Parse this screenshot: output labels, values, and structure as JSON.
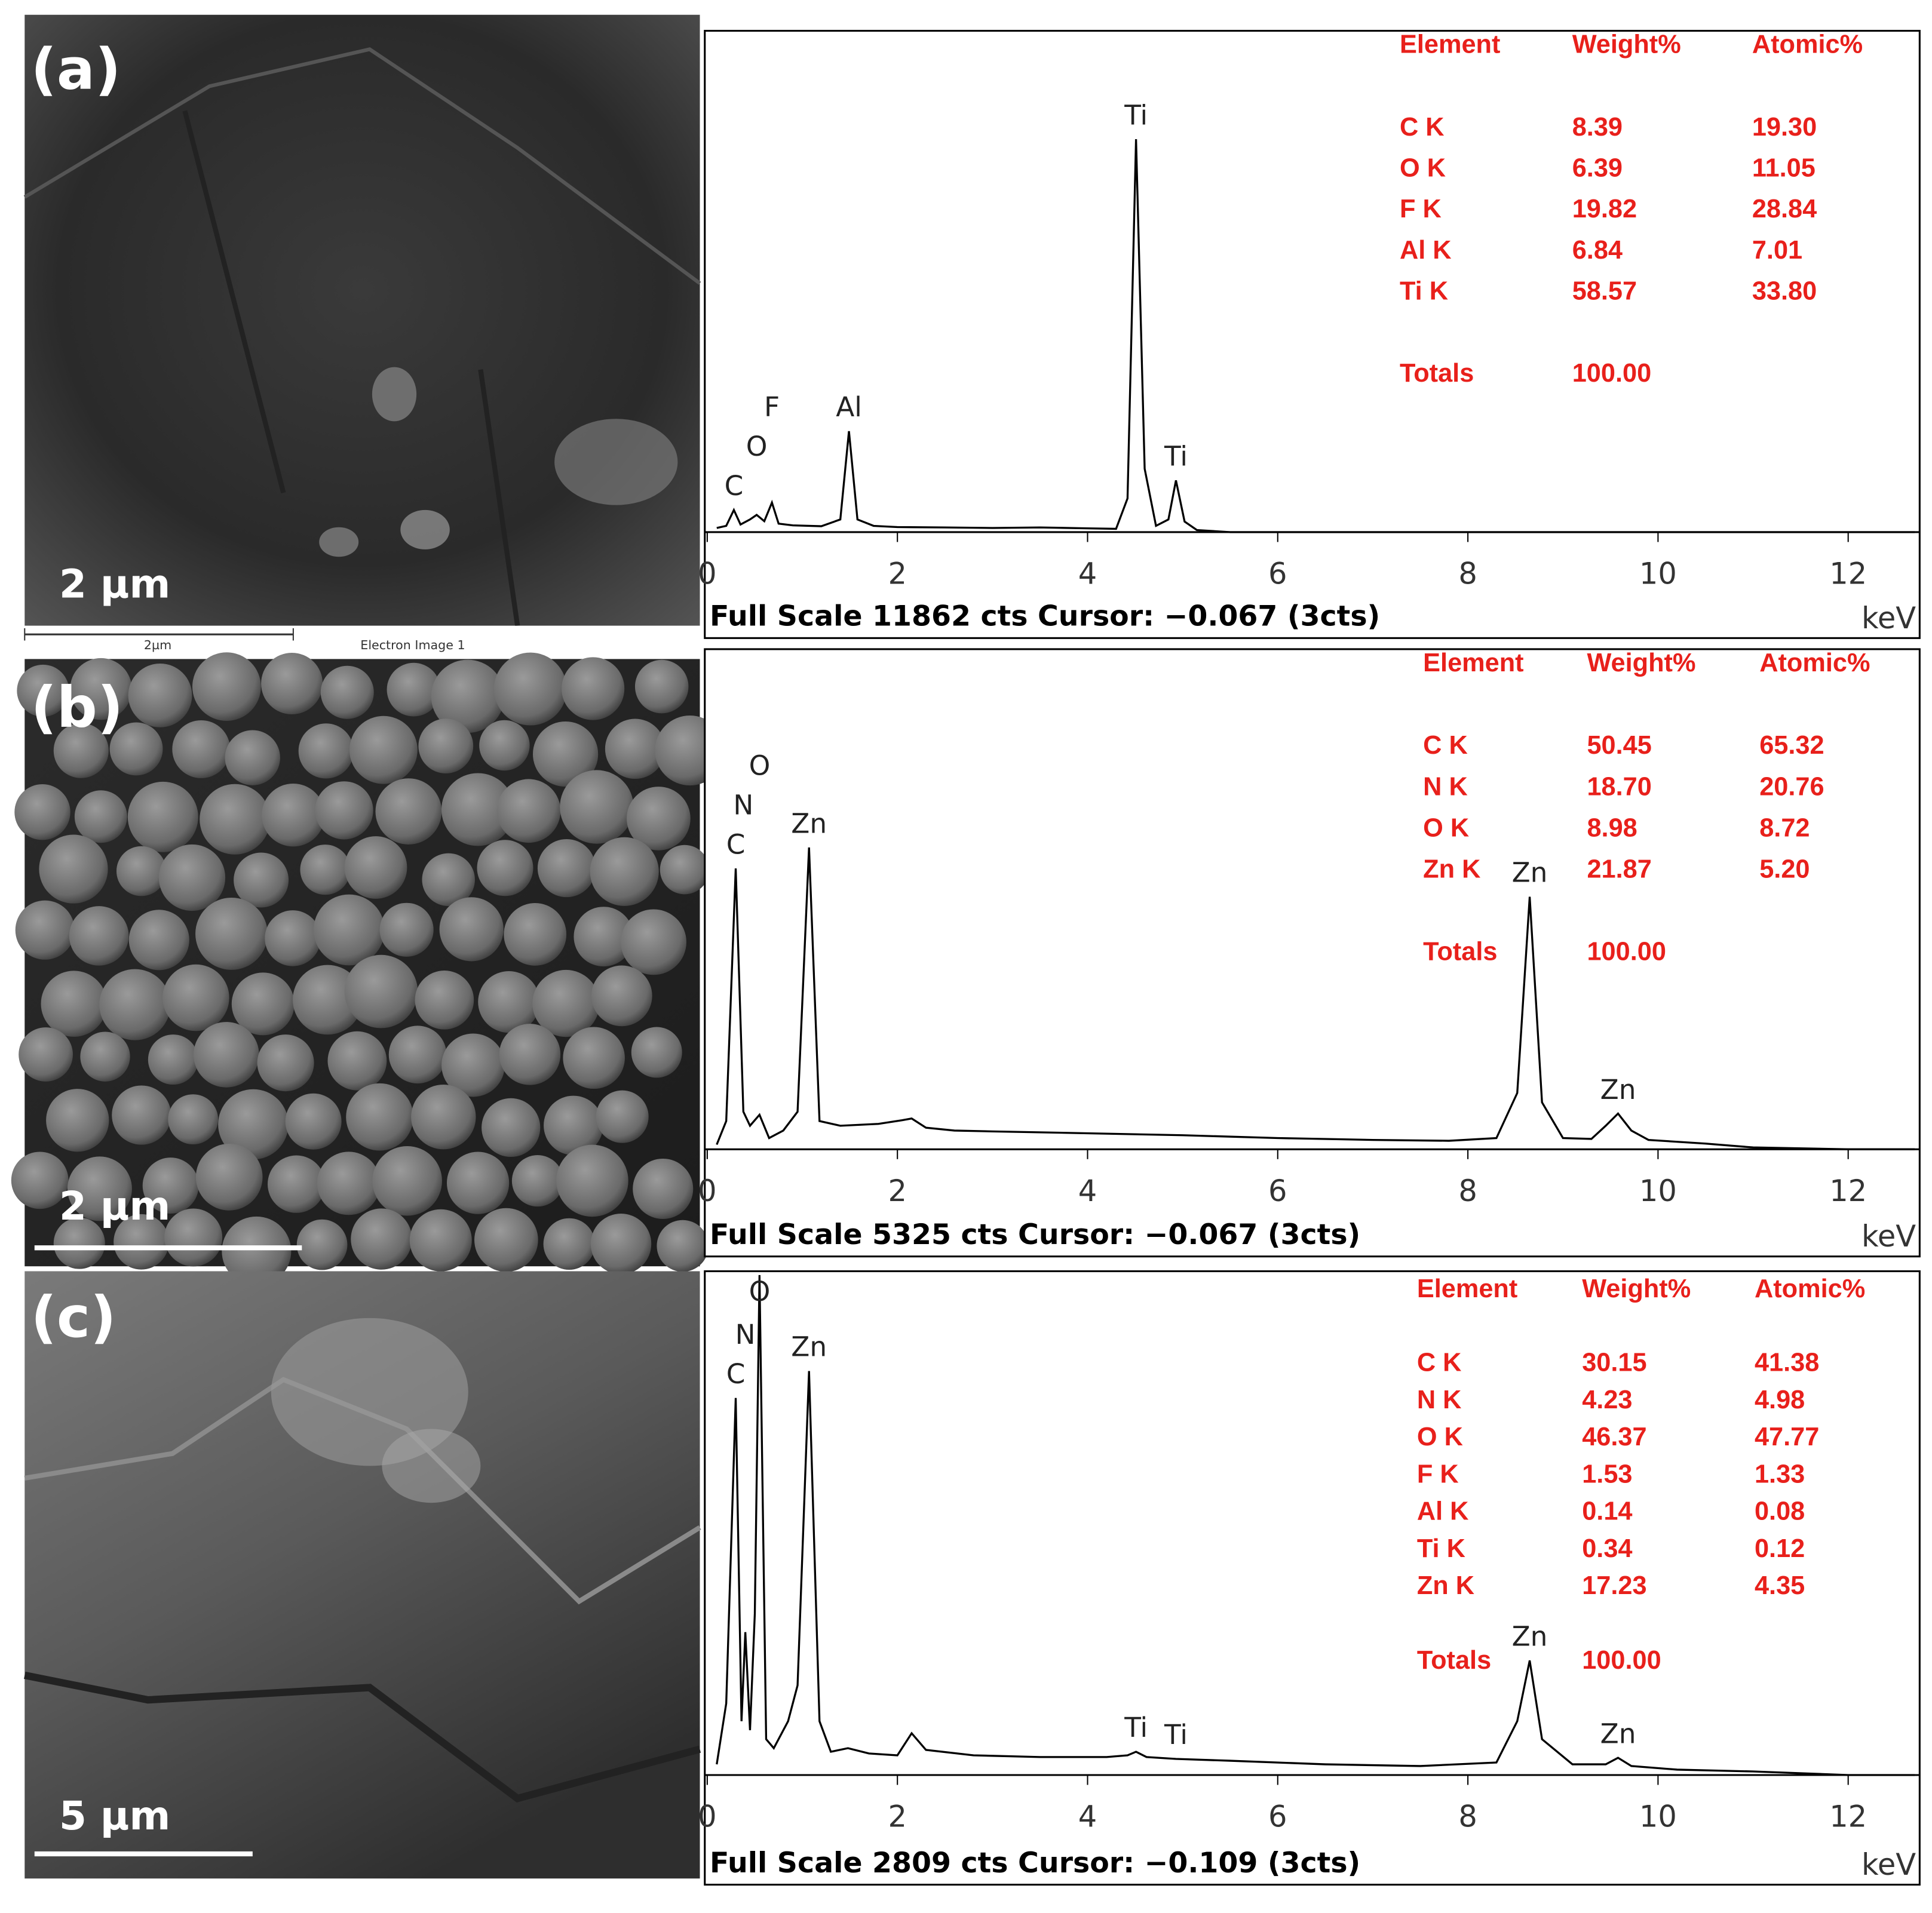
{
  "images": [
    {
      "label": "(a)",
      "scale": "2 µm",
      "strip_scale": "2µm",
      "strip_title": "Electron Image 1"
    },
    {
      "label": "(b)",
      "scale": "2 µm"
    },
    {
      "label": "(c)",
      "scale": "5 µm"
    }
  ],
  "chart_data": [
    {
      "type": "line",
      "x_label": "keV",
      "caption": "Full Scale 11862 cts Cursor: −0.067 (3cts)",
      "color": "#000000",
      "xlim": [
        0,
        12.7
      ],
      "xticks": [
        0,
        2,
        4,
        6,
        8,
        10,
        12
      ],
      "ylim": [
        0,
        11862
      ],
      "x": [
        0.1,
        0.2,
        0.28,
        0.35,
        0.45,
        0.52,
        0.6,
        0.68,
        0.75,
        0.9,
        1.2,
        1.4,
        1.49,
        1.58,
        1.75,
        2.0,
        2.5,
        3.0,
        3.5,
        4.0,
        4.3,
        4.42,
        4.51,
        4.6,
        4.72,
        4.85,
        4.93,
        5.02,
        5.15,
        5.5,
        6.0,
        7.0,
        8.0,
        9.0,
        10.0,
        11.0,
        12.0,
        12.7
      ],
      "values": [
        100,
        150,
        525,
        180,
        300,
        408,
        260,
        700,
        200,
        160,
        140,
        300,
        2390,
        300,
        150,
        120,
        110,
        100,
        110,
        90,
        80,
        800,
        9297,
        1500,
        150,
        300,
        1224,
        250,
        50,
        0,
        0,
        0,
        0,
        0,
        0,
        0,
        0,
        0
      ],
      "peak_labels": [
        {
          "text": "C",
          "x": 0.28
        },
        {
          "text": "O",
          "x": 0.52
        },
        {
          "text": "F",
          "x": 0.68
        },
        {
          "text": "Al",
          "x": 1.49
        },
        {
          "text": "Ti",
          "x": 4.51
        },
        {
          "text": "Ti",
          "x": 4.93
        }
      ],
      "table": {
        "header": [
          "Element",
          "Weight%",
          "Atomic%"
        ],
        "rows": [
          [
            "C K",
            "8.39",
            "19.30"
          ],
          [
            "O K",
            "6.39",
            "11.05"
          ],
          [
            "F K",
            "19.82",
            "28.84"
          ],
          [
            "Al K",
            "6.84",
            "7.01"
          ],
          [
            "Ti K",
            "58.57",
            "33.80"
          ]
        ],
        "totals": [
          "Totals",
          "100.00"
        ]
      }
    },
    {
      "type": "line",
      "x_label": "keV",
      "caption": "Full Scale 5325 cts Cursor: −0.067 (3cts)",
      "color": "#000000",
      "xlim": [
        0,
        12.7
      ],
      "xticks": [
        0,
        2,
        4,
        6,
        8,
        10,
        12
      ],
      "ylim": [
        0,
        5325
      ],
      "x": [
        0.1,
        0.2,
        0.3,
        0.38,
        0.45,
        0.55,
        0.65,
        0.8,
        0.95,
        1.07,
        1.18,
        1.4,
        1.8,
        2.05,
        2.15,
        2.3,
        2.6,
        3,
        4,
        5,
        6,
        7,
        7.8,
        8.3,
        8.52,
        8.65,
        8.78,
        9.0,
        9.3,
        9.45,
        9.58,
        9.72,
        9.9,
        10.5,
        11,
        12,
        12.7
      ],
      "values": [
        50,
        300,
        2990,
        400,
        250,
        367,
        120,
        200,
        400,
        3213,
        300,
        250,
        270,
        310,
        328,
        230,
        200,
        190,
        170,
        150,
        120,
        100,
        90,
        120,
        600,
        2689,
        500,
        120,
        110,
        250,
        380,
        200,
        100,
        60,
        20,
        0,
        0
      ],
      "peak_labels": [
        {
          "text": "C",
          "x": 0.3
        },
        {
          "text": "N",
          "x": 0.38
        },
        {
          "text": "O",
          "x": 0.55
        },
        {
          "text": "Zn",
          "x": 1.07
        },
        {
          "text": "Zn",
          "x": 8.65
        },
        {
          "text": "Zn",
          "x": 9.58
        }
      ],
      "table": {
        "header": [
          "Element",
          "Weight%",
          "Atomic%"
        ],
        "rows": [
          [
            "C K",
            "50.45",
            "65.32"
          ],
          [
            "N K",
            "18.70",
            "20.76"
          ],
          [
            "O K",
            "8.98",
            "8.72"
          ],
          [
            "Zn K",
            "21.87",
            "5.20"
          ]
        ],
        "totals": [
          "Totals",
          "100.00"
        ]
      }
    },
    {
      "type": "line",
      "x_label": "keV",
      "caption": "Full Scale 2809 cts Cursor: −0.109 (3cts)",
      "color": "#000000",
      "xlim": [
        0,
        12.7
      ],
      "xticks": [
        0,
        2,
        4,
        6,
        8,
        10,
        12
      ],
      "ylim": [
        0,
        2809
      ],
      "x": [
        0.1,
        0.2,
        0.3,
        0.36,
        0.4,
        0.45,
        0.5,
        0.55,
        0.62,
        0.7,
        0.85,
        0.95,
        1.07,
        1.18,
        1.3,
        1.48,
        1.7,
        2.0,
        2.15,
        2.3,
        2.8,
        3.5,
        4.2,
        4.42,
        4.51,
        4.62,
        4.93,
        5.5,
        6.5,
        7.5,
        8.3,
        8.52,
        8.65,
        8.78,
        9.1,
        9.45,
        9.58,
        9.72,
        10.2,
        11,
        12,
        12.7
      ],
      "values": [
        60,
        400,
        2102,
        300,
        797,
        250,
        900,
        2788,
        200,
        150,
        300,
        500,
        2253,
        300,
        130,
        150,
        120,
        110,
        233,
        140,
        110,
        100,
        100,
        110,
        130,
        100,
        90,
        80,
        60,
        50,
        70,
        300,
        639,
        200,
        60,
        60,
        96,
        50,
        30,
        20,
        0,
        0
      ],
      "peak_labels": [
        {
          "text": "C",
          "x": 0.3
        },
        {
          "text": "N",
          "x": 0.4
        },
        {
          "text": "O",
          "x": 0.55
        },
        {
          "text": "Zn",
          "x": 1.07
        },
        {
          "text": "Ti",
          "x": 4.51
        },
        {
          "text": "Ti",
          "x": 4.93
        },
        {
          "text": "Zn",
          "x": 8.65
        },
        {
          "text": "Zn",
          "x": 9.58
        }
      ],
      "table": {
        "header": [
          "Element",
          "Weight%",
          "Atomic%"
        ],
        "rows": [
          [
            "C K",
            "30.15",
            "41.38"
          ],
          [
            "N K",
            "4.23",
            "4.98"
          ],
          [
            "O K",
            "46.37",
            "47.77"
          ],
          [
            "F K",
            "1.53",
            "1.33"
          ],
          [
            "Al K",
            "0.14",
            "0.08"
          ],
          [
            "Ti K",
            "0.34",
            "0.12"
          ],
          [
            "Zn K",
            "17.23",
            "4.35"
          ]
        ],
        "totals": [
          "Totals",
          "100.00"
        ]
      }
    }
  ]
}
